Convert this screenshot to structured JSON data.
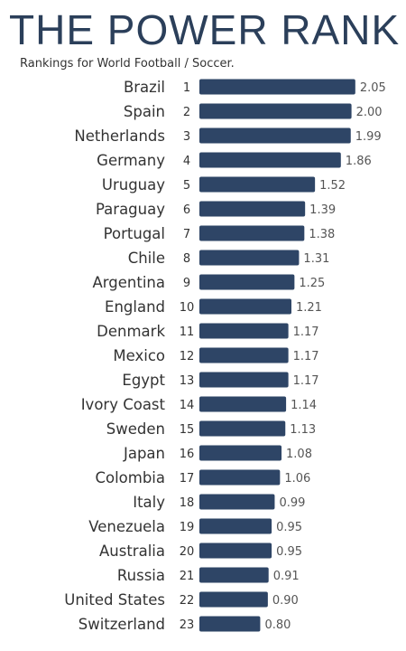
{
  "header": {
    "title": "THE POWER RANK",
    "subtitle": "Rankings for World Football / Soccer."
  },
  "colors": {
    "bar": "#2e4566",
    "title": "#2b3f5a"
  },
  "chart_data": {
    "type": "bar",
    "orientation": "horizontal",
    "title": "THE POWER RANK",
    "subtitle": "Rankings for World Football / Soccer.",
    "xlabel": "",
    "ylabel": "",
    "grid": false,
    "categories": [
      "Brazil",
      "Spain",
      "Netherlands",
      "Germany",
      "Uruguay",
      "Paraguay",
      "Portugal",
      "Chile",
      "Argentina",
      "England",
      "Denmark",
      "Mexico",
      "Egypt",
      "Ivory Coast",
      "Sweden",
      "Japan",
      "Colombia",
      "Italy",
      "Venezuela",
      "Australia",
      "Russia",
      "United States",
      "Switzerland"
    ],
    "ranks": [
      1,
      2,
      3,
      4,
      5,
      6,
      7,
      8,
      9,
      10,
      11,
      12,
      13,
      14,
      15,
      16,
      17,
      18,
      19,
      20,
      21,
      22,
      23
    ],
    "values": [
      2.05,
      2.0,
      1.99,
      1.86,
      1.52,
      1.39,
      1.38,
      1.31,
      1.25,
      1.21,
      1.17,
      1.17,
      1.17,
      1.14,
      1.13,
      1.08,
      1.06,
      0.99,
      0.95,
      0.95,
      0.91,
      0.9,
      0.8
    ],
    "value_labels": [
      "2.05",
      "2.00",
      "1.99",
      "1.86",
      "1.52",
      "1.39",
      "1.38",
      "1.31",
      "1.25",
      "1.21",
      "1.17",
      "1.17",
      "1.17",
      "1.14",
      "1.13",
      "1.08",
      "1.06",
      "0.99",
      "0.95",
      "0.95",
      "0.91",
      "0.90",
      "0.80"
    ]
  }
}
